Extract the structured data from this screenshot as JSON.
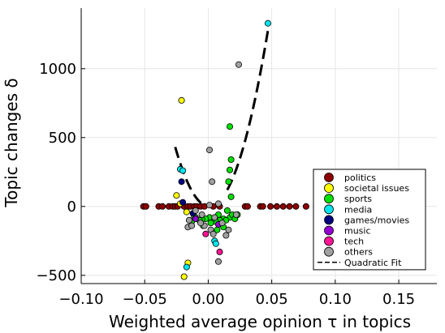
{
  "chart_data": {
    "type": "scatter",
    "xlabel": "Weighted average opinion τ in topics",
    "ylabel": "Topic changes δ",
    "xlim": [
      -0.1,
      0.18
    ],
    "ylim": [
      -560,
      1440
    ],
    "xticks": [
      -0.1,
      -0.05,
      0.0,
      0.05,
      0.1,
      0.15
    ],
    "xtick_labels": [
      "−0.10",
      "−0.05",
      "0.00",
      "0.05",
      "0.10",
      "0.15"
    ],
    "yticks": [
      -500,
      0,
      500,
      1000
    ],
    "ytick_labels": [
      "−500",
      "0",
      "500",
      "1000"
    ],
    "grid": true,
    "legend_position": "bottom-right",
    "series": [
      {
        "name": "politics",
        "color": "#8B0000",
        "points": [
          [
            -0.051,
            0
          ],
          [
            -0.049,
            0
          ],
          [
            -0.039,
            0
          ],
          [
            -0.036,
            0
          ],
          [
            -0.031,
            0
          ],
          [
            -0.028,
            0
          ],
          [
            -0.026,
            0
          ],
          [
            -0.024,
            0
          ],
          [
            -0.019,
            0
          ],
          [
            -0.016,
            0
          ],
          [
            -0.014,
            0
          ],
          [
            -0.011,
            0
          ],
          [
            -0.009,
            0
          ],
          [
            -0.006,
            0
          ],
          [
            -0.003,
            0
          ],
          [
            0.004,
            0
          ],
          [
            0.009,
            0
          ],
          [
            0.029,
            0
          ],
          [
            0.031,
            0
          ],
          [
            0.041,
            0
          ],
          [
            0.043,
            0
          ],
          [
            0.049,
            0
          ],
          [
            0.054,
            0
          ],
          [
            0.059,
            0
          ],
          [
            0.064,
            0
          ],
          [
            0.069,
            0
          ],
          [
            0.077,
            0
          ]
        ]
      },
      {
        "name": "societal issues",
        "color": "#FFFF00",
        "points": [
          [
            -0.021,
            770
          ],
          [
            -0.025,
            80
          ],
          [
            -0.022,
            20
          ],
          [
            -0.017,
            -40
          ],
          [
            -0.016,
            -410
          ],
          [
            -0.019,
            -510
          ]
        ]
      },
      {
        "name": "sports",
        "color": "#00E000",
        "points": [
          [
            0.017,
            580
          ],
          [
            0.018,
            340
          ],
          [
            0.017,
            265
          ],
          [
            0.016,
            180
          ],
          [
            0.018,
            70
          ],
          [
            0.015,
            -30
          ],
          [
            0.017,
            -80
          ],
          [
            0.012,
            -90
          ],
          [
            0.009,
            -100
          ],
          [
            0.006,
            -110
          ],
          [
            0.003,
            -95
          ],
          [
            0.001,
            -80
          ],
          [
            -0.002,
            -90
          ],
          [
            -0.005,
            -95
          ],
          [
            -0.007,
            -100
          ],
          [
            -0.01,
            -80
          ],
          [
            -0.013,
            -110
          ],
          [
            0.002,
            -120
          ],
          [
            0.007,
            -170
          ],
          [
            0.019,
            -60
          ],
          [
            0.021,
            -90
          ],
          [
            0.023,
            -60
          ],
          [
            0.012,
            -150
          ],
          [
            -0.004,
            -140
          ],
          [
            0.008,
            -60
          ],
          [
            -0.011,
            -70
          ],
          [
            0.014,
            -100
          ]
        ]
      },
      {
        "name": "media",
        "color": "#00E5EE",
        "points": [
          [
            0.047,
            1330
          ],
          [
            -0.022,
            270
          ],
          [
            -0.02,
            260
          ],
          [
            -0.017,
            -440
          ],
          [
            0.005,
            -250
          ],
          [
            0.006,
            -270
          ]
        ]
      },
      {
        "name": "games/movies",
        "color": "#000080",
        "points": [
          [
            -0.021,
            180
          ],
          [
            -0.02,
            30
          ],
          [
            -0.012,
            -50
          ]
        ]
      },
      {
        "name": "music",
        "color": "#9400D3",
        "points": [
          [
            -0.01,
            -90
          ],
          [
            0.008,
            -130
          ]
        ]
      },
      {
        "name": "tech",
        "color": "#FF1493",
        "points": [
          [
            0.009,
            -330
          ],
          [
            -0.002,
            -200
          ]
        ]
      },
      {
        "name": "others",
        "color": "#A0A0A0",
        "points": [
          [
            0.024,
            1030
          ],
          [
            0.001,
            410
          ],
          [
            0.003,
            180
          ],
          [
            0.008,
            20
          ],
          [
            0.001,
            10
          ],
          [
            -0.01,
            -30
          ],
          [
            -0.015,
            -100
          ],
          [
            -0.016,
            -150
          ],
          [
            -0.005,
            -60
          ],
          [
            0.005,
            -80
          ],
          [
            0.011,
            -120
          ],
          [
            0.022,
            -60
          ],
          [
            0.008,
            -400
          ],
          [
            0.016,
            -170
          ],
          [
            -0.003,
            -140
          ],
          [
            0.002,
            -170
          ],
          [
            0.004,
            -200
          ],
          [
            0.014,
            -210
          ],
          [
            -0.006,
            -120
          ],
          [
            -0.013,
            -140
          ]
        ]
      }
    ],
    "fit": {
      "name": "Quadratic Fit",
      "color": "#000000",
      "type": "quadratic",
      "coefficients": [
        0,
        -1000,
        600000
      ],
      "segments": [
        [
          -0.026,
          -0.005
        ],
        [
          0.015,
          0.047
        ]
      ]
    }
  }
}
